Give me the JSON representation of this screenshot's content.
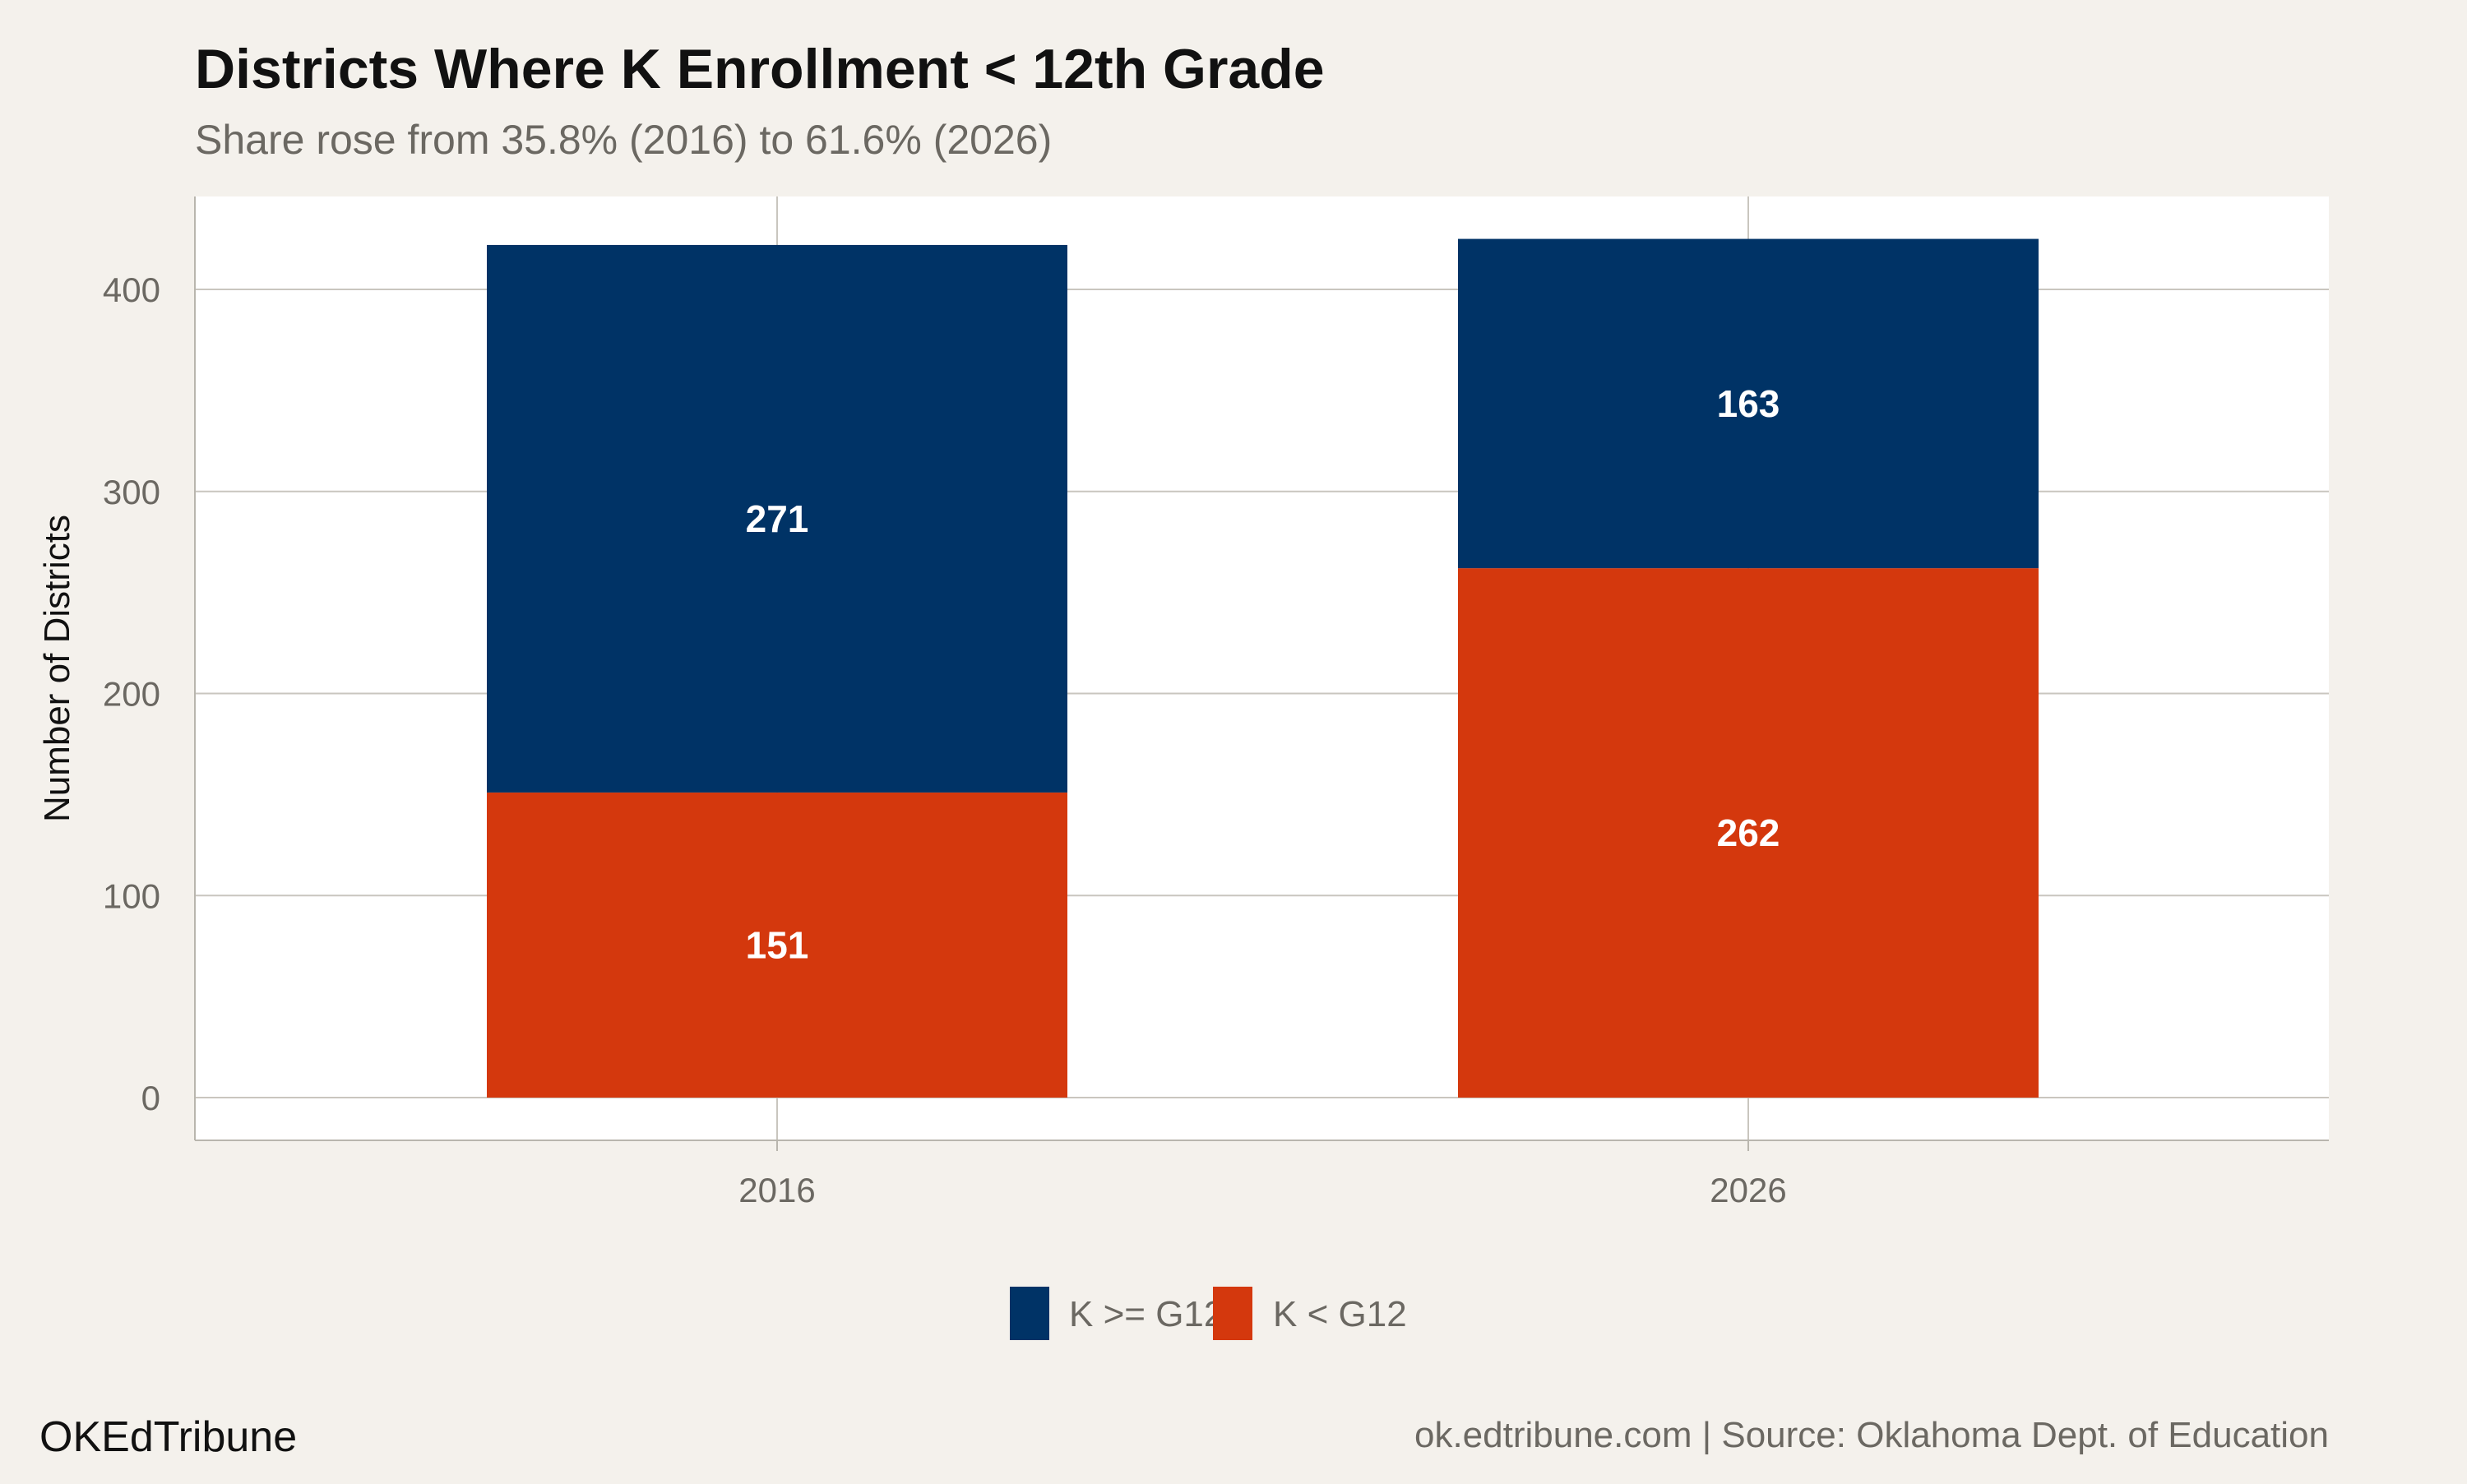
{
  "chart_data": {
    "type": "bar",
    "stacked": true,
    "title": "Districts Where K Enrollment < 12th Grade",
    "subtitle": "Share rose from 35.8% (2016) to 61.6% (2026)",
    "xlabel": "",
    "ylabel": "Number of Districts",
    "categories": [
      "2016",
      "2026"
    ],
    "series": [
      {
        "name": "K < G12",
        "values": [
          151,
          262
        ],
        "color": "#d4380d"
      },
      {
        "name": "K >= G12",
        "values": [
          271,
          163
        ],
        "color": "#003366"
      }
    ],
    "legend_order": [
      "K >= G12",
      "K < G12"
    ],
    "ylim": [
      -20,
      445
    ],
    "yticks": [
      0,
      100,
      200,
      300,
      400
    ],
    "grid": true,
    "legend_position": "bottom"
  },
  "footer": {
    "brand": "OKEdTribune",
    "source": "ok.edtribune.com | Source: Oklahoma Dept. of Education"
  },
  "colors": {
    "background": "#f4f1ec",
    "panel": "#ffffff",
    "grid": "#c9c6bf"
  }
}
